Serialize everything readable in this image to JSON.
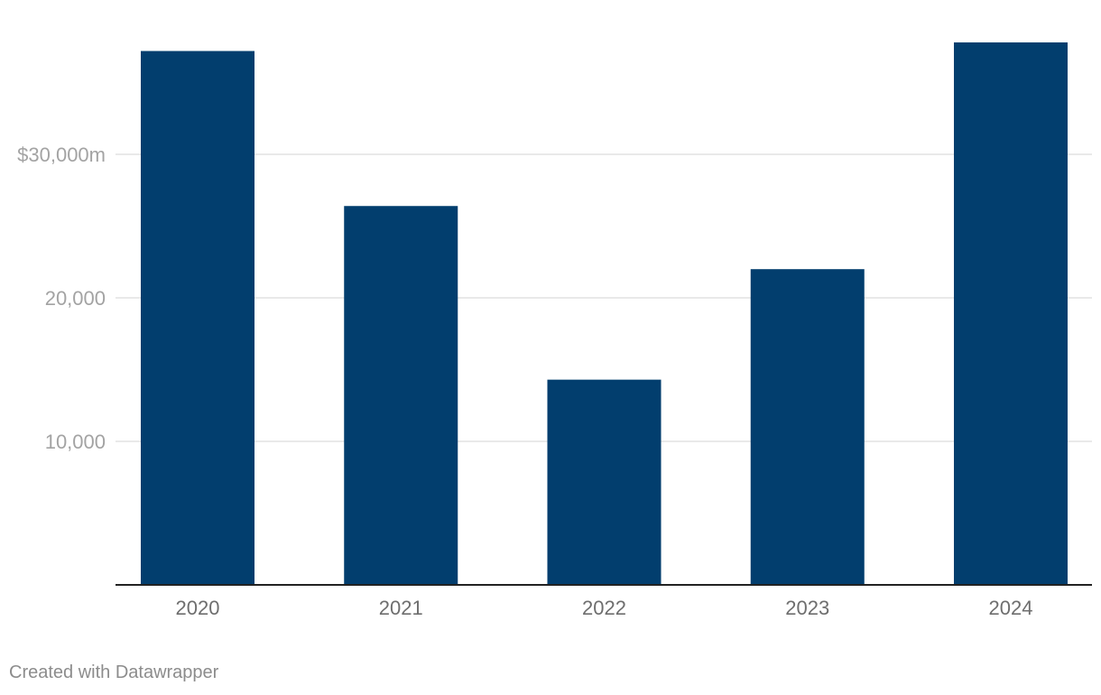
{
  "chart_data": {
    "type": "bar",
    "categories": [
      "2020",
      "2021",
      "2022",
      "2023",
      "2024"
    ],
    "values": [
      37200,
      26400,
      14300,
      22000,
      37800
    ],
    "yticks": [
      {
        "value": 10000,
        "label": "10,000"
      },
      {
        "value": 20000,
        "label": "20,000"
      },
      {
        "value": 30000,
        "label": "$30,000m"
      }
    ],
    "ylim": [
      0,
      38000
    ],
    "grid": true,
    "colors": {
      "bar": "#023e6e"
    }
  },
  "footer": {
    "credit": "Created with Datawrapper"
  }
}
